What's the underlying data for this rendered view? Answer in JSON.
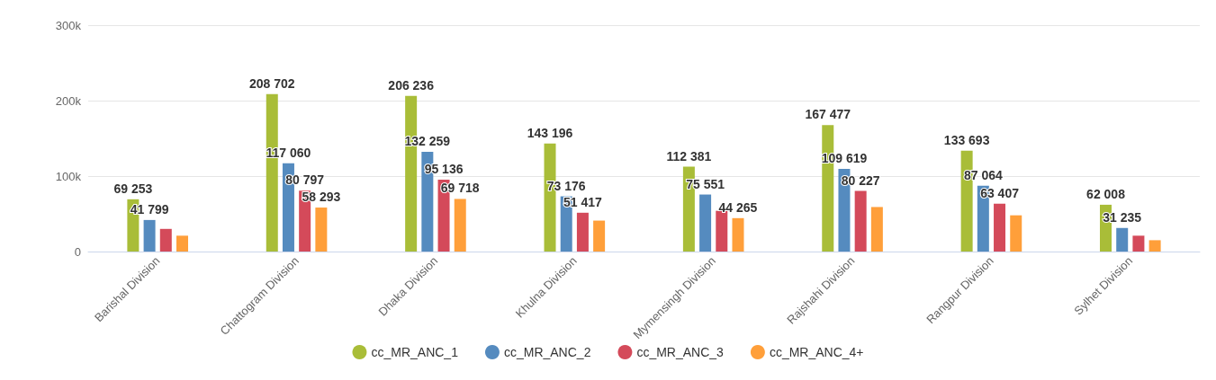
{
  "chart_data": {
    "type": "bar",
    "categories": [
      "Barishal Division",
      "Chattogram Division",
      "Dhaka Division",
      "Khulna Division",
      "Mymensingh Division",
      "Rajshahi Division",
      "Rangpur Division",
      "Sylhet Division"
    ],
    "series": [
      {
        "name": "cc_MR_ANC_1",
        "color": "#a9bd38",
        "values": [
          69253,
          208702,
          206236,
          143196,
          112381,
          167477,
          133693,
          62008
        ],
        "value_labels": [
          "69 253",
          "208 702",
          "206 236",
          "143 196",
          "112 381",
          "167 477",
          "133 693",
          "62 008"
        ]
      },
      {
        "name": "cc_MR_ANC_2",
        "color": "#558bbf",
        "values": [
          41799,
          117060,
          132259,
          73176,
          75551,
          109619,
          87064,
          31235
        ],
        "value_labels": [
          "41 799",
          "117 060",
          "132 259",
          "73 176",
          "75 551",
          "109 619",
          "87 064",
          "31 235"
        ]
      },
      {
        "name": "cc_MR_ANC_3",
        "color": "#d44a5a",
        "values": [
          30000,
          80797,
          95136,
          51417,
          54000,
          80227,
          63407,
          21000
        ],
        "value_labels": [
          null,
          "80 797",
          "95 136",
          "51 417",
          null,
          "80 227",
          "63 407",
          null
        ]
      },
      {
        "name": "cc_MR_ANC_4+",
        "color": "#ff9f3a",
        "values": [
          21000,
          58293,
          69718,
          41000,
          44265,
          59000,
          48000,
          15000
        ],
        "value_labels": [
          null,
          "58 293",
          "69 718",
          null,
          "44 265",
          null,
          null,
          null
        ]
      }
    ],
    "ylim": [
      0,
      300000
    ],
    "yticks": [
      {
        "value": 0,
        "label": "0"
      },
      {
        "value": 100000,
        "label": "100k"
      },
      {
        "value": 200000,
        "label": "200k"
      },
      {
        "value": 300000,
        "label": "300k"
      }
    ],
    "grid": true,
    "legend": "bottom"
  }
}
